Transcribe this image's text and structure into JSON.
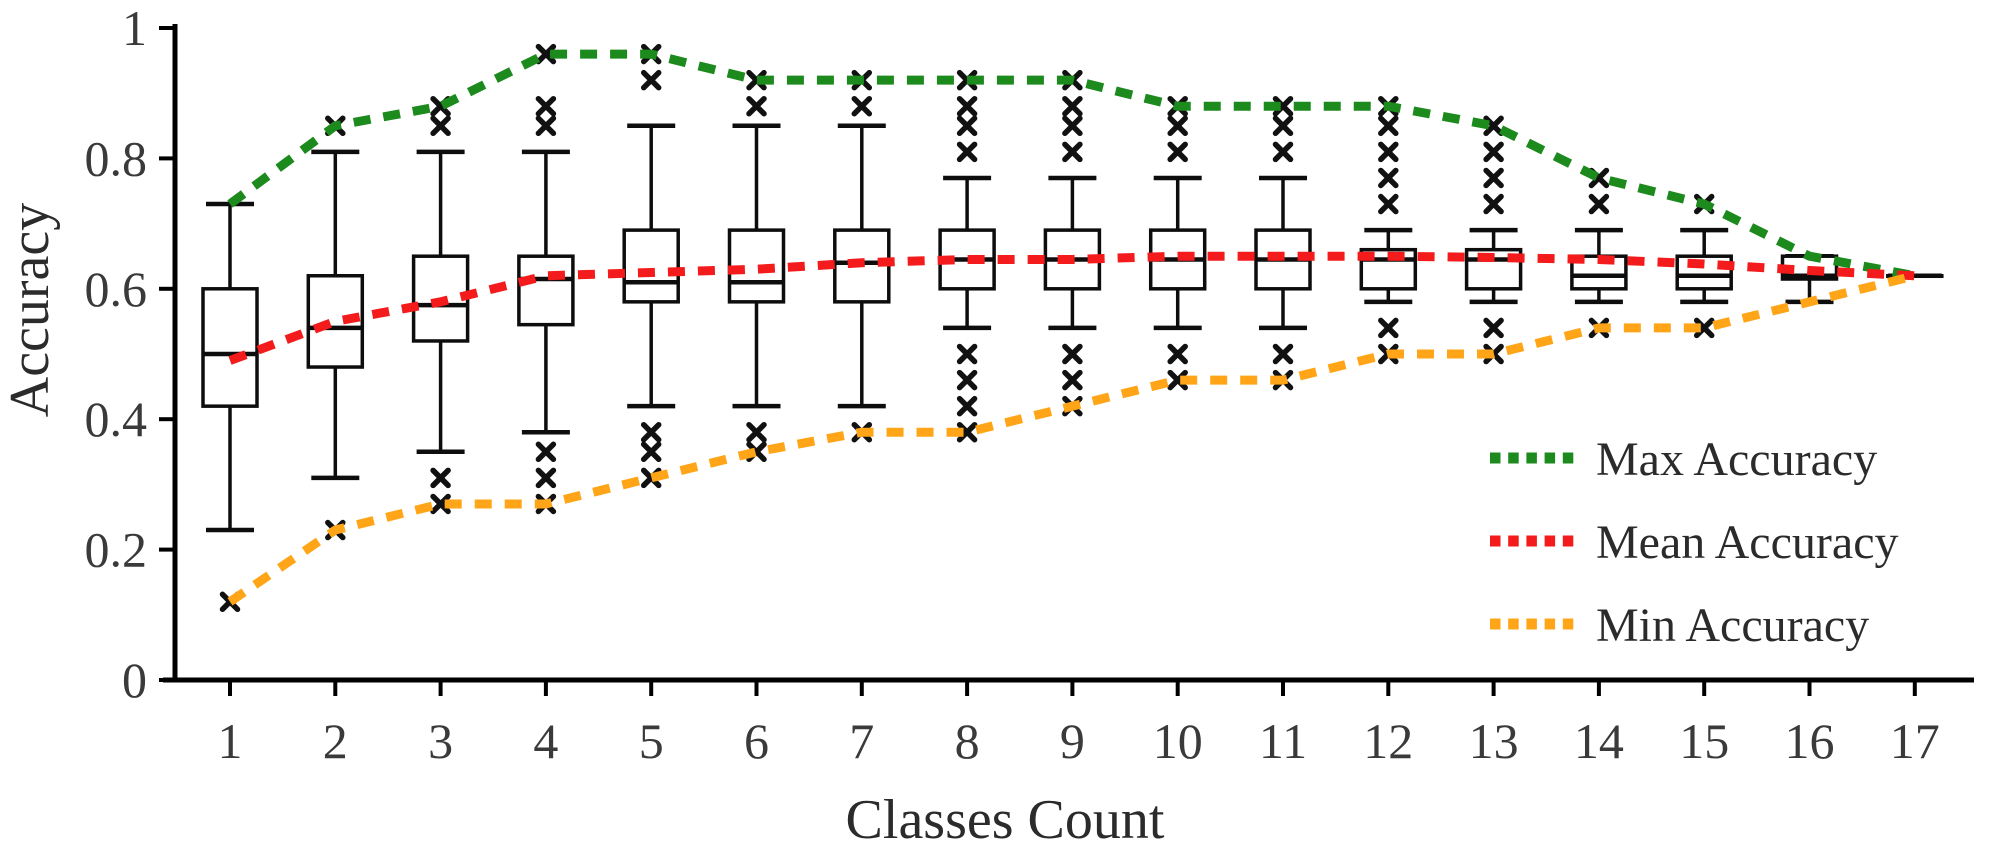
{
  "chart_data": {
    "type": "boxplot-with-lines",
    "title": "",
    "xlabel": "Classes Count",
    "ylabel": "Accuracy",
    "x_categories": [
      1,
      2,
      3,
      4,
      5,
      6,
      7,
      8,
      9,
      10,
      11,
      12,
      13,
      14,
      15,
      16,
      17
    ],
    "y_ticks": [
      0,
      0.2,
      0.4,
      0.6,
      0.8,
      1
    ],
    "y_tick_labels": [
      "0",
      "0.2",
      "0.4",
      "0.6",
      "0.8",
      "1"
    ],
    "ylim": [
      0,
      1
    ],
    "grid": false,
    "boxes": [
      {
        "class": 1,
        "whisker_low": 0.23,
        "q1": 0.42,
        "median": 0.5,
        "q3": 0.6,
        "whisker_high": 0.73,
        "outliers_high": [],
        "outliers_low": [
          0.12
        ]
      },
      {
        "class": 2,
        "whisker_low": 0.31,
        "q1": 0.48,
        "median": 0.54,
        "q3": 0.62,
        "whisker_high": 0.81,
        "outliers_high": [
          0.85
        ],
        "outliers_low": [
          0.23
        ]
      },
      {
        "class": 3,
        "whisker_low": 0.35,
        "q1": 0.52,
        "median": 0.575,
        "q3": 0.65,
        "whisker_high": 0.81,
        "outliers_high": [
          0.88,
          0.85
        ],
        "outliers_low": [
          0.31,
          0.27
        ]
      },
      {
        "class": 4,
        "whisker_low": 0.38,
        "q1": 0.545,
        "median": 0.615,
        "q3": 0.65,
        "whisker_high": 0.81,
        "outliers_high": [
          0.96,
          0.88,
          0.85
        ],
        "outliers_low": [
          0.35,
          0.31,
          0.27
        ]
      },
      {
        "class": 5,
        "whisker_low": 0.42,
        "q1": 0.58,
        "median": 0.61,
        "q3": 0.69,
        "whisker_high": 0.85,
        "outliers_high": [
          0.96,
          0.92
        ],
        "outliers_low": [
          0.38,
          0.35,
          0.31
        ]
      },
      {
        "class": 6,
        "whisker_low": 0.42,
        "q1": 0.58,
        "median": 0.61,
        "q3": 0.69,
        "whisker_high": 0.85,
        "outliers_high": [
          0.92,
          0.88
        ],
        "outliers_low": [
          0.38,
          0.35
        ]
      },
      {
        "class": 7,
        "whisker_low": 0.42,
        "q1": 0.58,
        "median": 0.64,
        "q3": 0.69,
        "whisker_high": 0.85,
        "outliers_high": [
          0.92,
          0.88
        ],
        "outliers_low": [
          0.38
        ]
      },
      {
        "class": 8,
        "whisker_low": 0.54,
        "q1": 0.6,
        "median": 0.645,
        "q3": 0.69,
        "whisker_high": 0.77,
        "outliers_high": [
          0.92,
          0.88,
          0.85,
          0.81
        ],
        "outliers_low": [
          0.5,
          0.46,
          0.42,
          0.38
        ]
      },
      {
        "class": 9,
        "whisker_low": 0.54,
        "q1": 0.6,
        "median": 0.645,
        "q3": 0.69,
        "whisker_high": 0.77,
        "outliers_high": [
          0.92,
          0.88,
          0.85,
          0.81
        ],
        "outliers_low": [
          0.5,
          0.46,
          0.42
        ]
      },
      {
        "class": 10,
        "whisker_low": 0.54,
        "q1": 0.6,
        "median": 0.645,
        "q3": 0.69,
        "whisker_high": 0.77,
        "outliers_high": [
          0.88,
          0.85,
          0.81
        ],
        "outliers_low": [
          0.5,
          0.46
        ]
      },
      {
        "class": 11,
        "whisker_low": 0.54,
        "q1": 0.6,
        "median": 0.645,
        "q3": 0.69,
        "whisker_high": 0.77,
        "outliers_high": [
          0.88,
          0.85,
          0.81
        ],
        "outliers_low": [
          0.5,
          0.46
        ]
      },
      {
        "class": 12,
        "whisker_low": 0.58,
        "q1": 0.6,
        "median": 0.645,
        "q3": 0.66,
        "whisker_high": 0.69,
        "outliers_high": [
          0.88,
          0.85,
          0.81,
          0.77,
          0.73
        ],
        "outliers_low": [
          0.54,
          0.5
        ]
      },
      {
        "class": 13,
        "whisker_low": 0.58,
        "q1": 0.6,
        "median": 0.645,
        "q3": 0.66,
        "whisker_high": 0.69,
        "outliers_high": [
          0.85,
          0.81,
          0.77,
          0.73
        ],
        "outliers_low": [
          0.54,
          0.5
        ]
      },
      {
        "class": 14,
        "whisker_low": 0.58,
        "q1": 0.6,
        "median": 0.62,
        "q3": 0.65,
        "whisker_high": 0.69,
        "outliers_high": [
          0.77,
          0.73
        ],
        "outliers_low": [
          0.54
        ]
      },
      {
        "class": 15,
        "whisker_low": 0.58,
        "q1": 0.6,
        "median": 0.62,
        "q3": 0.65,
        "whisker_high": 0.69,
        "outliers_high": [
          0.73
        ],
        "outliers_low": [
          0.54
        ]
      },
      {
        "class": 16,
        "whisker_low": 0.58,
        "q1": 0.615,
        "median": 0.62,
        "q3": 0.65,
        "whisker_high": 0.65,
        "outliers_high": [],
        "outliers_low": []
      },
      {
        "class": 17,
        "whisker_low": 0.62,
        "q1": 0.62,
        "median": 0.62,
        "q3": 0.62,
        "whisker_high": 0.62,
        "outliers_high": [],
        "outliers_low": []
      }
    ],
    "series": [
      {
        "name": "Max Accuracy",
        "color": "#1c8a1c",
        "values": [
          0.73,
          0.85,
          0.88,
          0.96,
          0.96,
          0.92,
          0.92,
          0.92,
          0.92,
          0.88,
          0.88,
          0.88,
          0.85,
          0.77,
          0.73,
          0.65,
          0.62
        ]
      },
      {
        "name": "Mean Accuracy",
        "color": "#f31b1b",
        "values": [
          0.49,
          0.55,
          0.58,
          0.62,
          0.625,
          0.63,
          0.64,
          0.645,
          0.645,
          0.65,
          0.65,
          0.65,
          0.648,
          0.645,
          0.638,
          0.628,
          0.62
        ]
      },
      {
        "name": "Min Accuracy",
        "color": "#ffa517",
        "values": [
          0.12,
          0.23,
          0.27,
          0.27,
          0.31,
          0.35,
          0.38,
          0.38,
          0.42,
          0.46,
          0.46,
          0.5,
          0.5,
          0.54,
          0.54,
          0.58,
          0.62
        ]
      }
    ],
    "legend": {
      "position": "lower right",
      "entries": [
        "Max Accuracy",
        "Mean Accuracy",
        "Min Accuracy"
      ]
    }
  },
  "styles": {
    "box_color": "#0d0d0d",
    "axis_color": "#000000",
    "tick_text_color": "#3a3a3a",
    "label_text_color": "#2b2b2b",
    "marker_color": "#111111",
    "background": "#ffffff"
  }
}
